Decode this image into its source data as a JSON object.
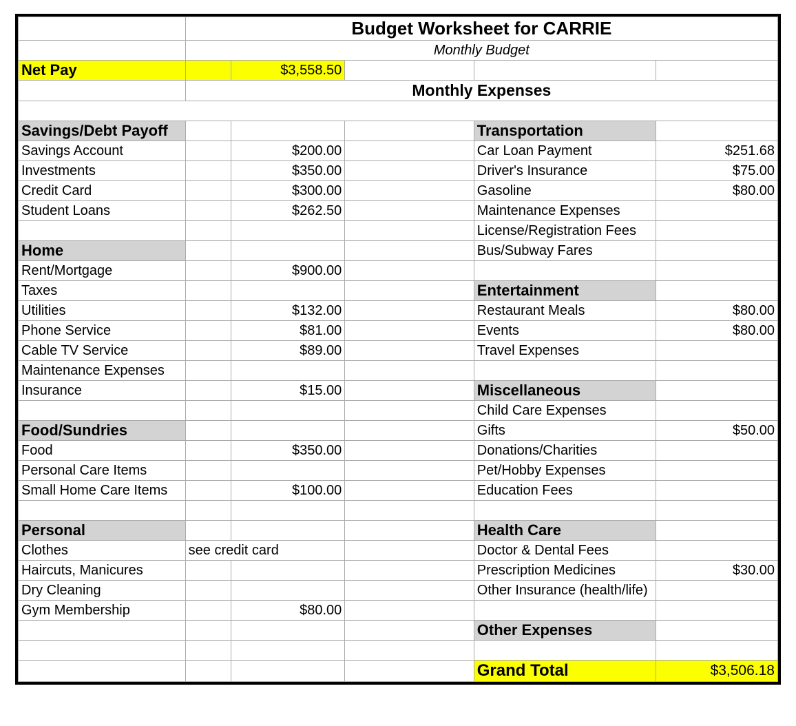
{
  "colors": {
    "highlight": "#fcff00",
    "section_bg": "#d3d3d3",
    "border": "#a9a9a9",
    "outer_border": "#000000",
    "text": "#000000",
    "background": "#ffffff"
  },
  "title": "Budget Worksheet for CARRIE",
  "subtitle": "Monthly Budget",
  "net_pay": {
    "label": "Net Pay",
    "value": "$3,558.50"
  },
  "monthly_expenses_header": "Monthly Expenses",
  "left": {
    "savings": {
      "header": "Savings/Debt Payoff",
      "items": [
        {
          "label": "Savings Account",
          "value": "$200.00"
        },
        {
          "label": "Investments",
          "value": "$350.00"
        },
        {
          "label": "Credit Card",
          "value": "$300.00"
        },
        {
          "label": "Student Loans",
          "value": "$262.50"
        }
      ]
    },
    "home": {
      "header": "Home",
      "items": [
        {
          "label": "Rent/Mortgage",
          "value": "$900.00"
        },
        {
          "label": "Taxes",
          "value": ""
        },
        {
          "label": "Utilities",
          "value": "$132.00"
        },
        {
          "label": "Phone Service",
          "value": "$81.00"
        },
        {
          "label": "Cable TV Service",
          "value": "$89.00"
        },
        {
          "label": "Maintenance Expenses",
          "value": ""
        },
        {
          "label": "Insurance",
          "value": "$15.00"
        }
      ]
    },
    "food": {
      "header": "Food/Sundries",
      "items": [
        {
          "label": "Food",
          "value": "$350.00"
        },
        {
          "label": "Personal Care Items",
          "value": ""
        },
        {
          "label": "Small Home Care Items",
          "value": "$100.00"
        }
      ]
    },
    "personal": {
      "header": "Personal",
      "items": [
        {
          "label": "Clothes",
          "note": "see credit card",
          "value": ""
        },
        {
          "label": "Haircuts, Manicures",
          "note": "",
          "value": ""
        },
        {
          "label": "Dry Cleaning",
          "note": "",
          "value": ""
        },
        {
          "label": "Gym Membership",
          "note": "",
          "value": "$80.00"
        }
      ]
    }
  },
  "right": {
    "transportation": {
      "header": "Transportation",
      "items": [
        {
          "label": "Car Loan Payment",
          "value": "$251.68"
        },
        {
          "label": "Driver's Insurance",
          "value": "$75.00"
        },
        {
          "label": "Gasoline",
          "value": "$80.00"
        },
        {
          "label": "Maintenance Expenses",
          "value": ""
        },
        {
          "label": "License/Registration Fees",
          "value": ""
        },
        {
          "label": "Bus/Subway Fares",
          "value": ""
        }
      ]
    },
    "entertainment": {
      "header": "Entertainment",
      "items": [
        {
          "label": "Restaurant Meals",
          "value": "$80.00"
        },
        {
          "label": "Events",
          "value": "$80.00"
        },
        {
          "label": "Travel Expenses",
          "value": ""
        }
      ]
    },
    "misc": {
      "header": "Miscellaneous",
      "items": [
        {
          "label": "Child Care Expenses",
          "value": ""
        },
        {
          "label": "Gifts",
          "value": "$50.00"
        },
        {
          "label": "Donations/Charities",
          "value": ""
        },
        {
          "label": "Pet/Hobby Expenses",
          "value": ""
        },
        {
          "label": "Education Fees",
          "value": ""
        }
      ]
    },
    "health": {
      "header": "Health Care",
      "items": [
        {
          "label": "Doctor & Dental Fees",
          "value": ""
        },
        {
          "label": "Prescription Medicines",
          "value": "$30.00"
        },
        {
          "label": "Other Insurance (health/life)",
          "value": ""
        }
      ]
    },
    "other": {
      "header": "Other Expenses"
    }
  },
  "grand_total": {
    "label": "Grand Total",
    "value": "$3,506.18"
  }
}
